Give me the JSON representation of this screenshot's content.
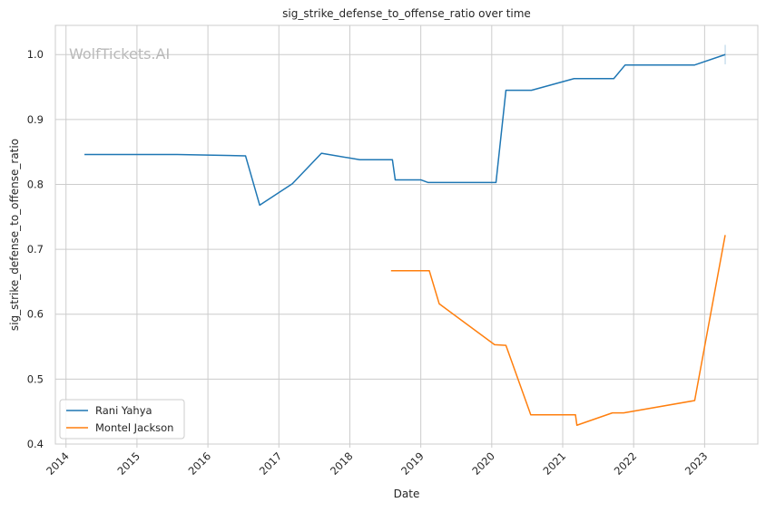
{
  "chart_data": {
    "type": "line",
    "title": "sig_strike_defense_to_offense_ratio over time",
    "xlabel": "Date",
    "ylabel": "sig_strike_defense_to_offense_ratio",
    "watermark": "WolfTickets.AI",
    "grid": true,
    "legend_position": "lower-left",
    "xlim": [
      2013.85,
      2023.75
    ],
    "ylim": [
      0.4,
      1.045
    ],
    "x_ticks": [
      2014,
      2015,
      2016,
      2017,
      2018,
      2019,
      2020,
      2021,
      2022,
      2023
    ],
    "x_tick_labels": [
      "2014",
      "2015",
      "2016",
      "2017",
      "2018",
      "2019",
      "2020",
      "2021",
      "2022",
      "2023"
    ],
    "y_ticks": [
      0.4,
      0.5,
      0.6,
      0.7,
      0.8,
      0.9,
      1.0
    ],
    "y_tick_labels": [
      "0.4",
      "0.5",
      "0.6",
      "0.7",
      "0.8",
      "0.9",
      "1.0"
    ],
    "series": [
      {
        "name": "Rani Yahya",
        "color": "#1f77b4",
        "x": [
          2014.26,
          2015.57,
          2016.53,
          2016.73,
          2017.19,
          2017.6,
          2018.14,
          2018.6,
          2018.64,
          2019.0,
          2019.1,
          2020.06,
          2020.2,
          2020.56,
          2021.16,
          2021.72,
          2021.88,
          2022.86,
          2023.29
        ],
        "y": [
          0.846,
          0.846,
          0.844,
          0.768,
          0.801,
          0.848,
          0.838,
          0.838,
          0.807,
          0.807,
          0.803,
          0.803,
          0.945,
          0.945,
          0.963,
          0.963,
          0.984,
          0.984,
          1.0
        ]
      },
      {
        "name": "Montel Jackson",
        "color": "#ff7f0e",
        "x": [
          2018.58,
          2019.12,
          2019.26,
          2020.04,
          2020.2,
          2020.55,
          2021.18,
          2021.2,
          2021.7,
          2021.86,
          2022.86,
          2023.29
        ],
        "y": [
          0.667,
          0.667,
          0.616,
          0.553,
          0.552,
          0.445,
          0.445,
          0.429,
          0.448,
          0.448,
          0.467,
          0.722
        ]
      }
    ]
  }
}
